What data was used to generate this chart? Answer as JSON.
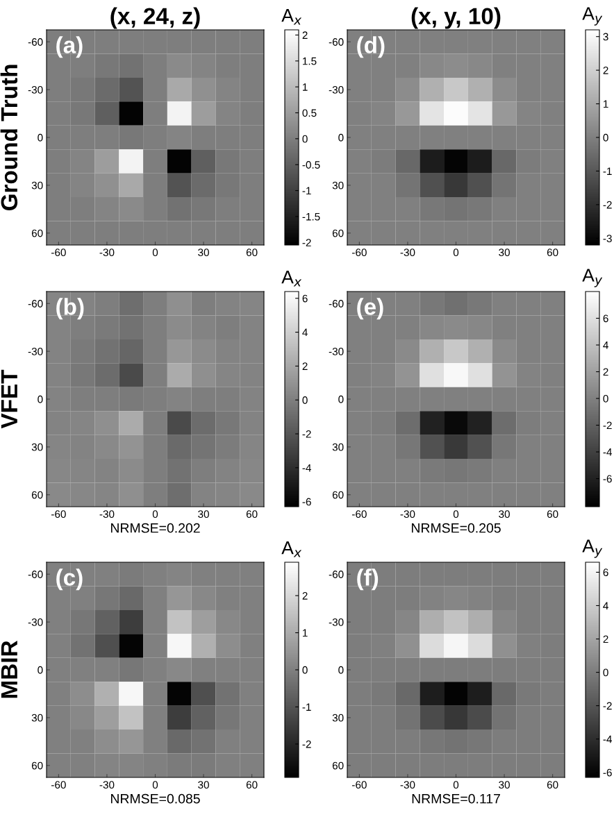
{
  "chart_data": [
    {
      "type": "heatmap",
      "title": "(x, 24, z)",
      "ylabel": "Ground Truth",
      "clabel": "A$_{x}$",
      "annotations": [
        "(a)"
      ],
      "categories": [
        "-60",
        null,
        "-30",
        null,
        "0",
        null,
        "30",
        null,
        "60"
      ],
      "y_categories": [
        "-60",
        null,
        "-30",
        null,
        "0",
        null,
        "30",
        null,
        "60"
      ],
      "clim": [
        -2.05,
        2.1
      ],
      "cticks": [
        -2,
        -1.5,
        -1,
        -0.5,
        0,
        0.5,
        1,
        1.5,
        2
      ],
      "cells": [
        [
          0,
          0,
          0,
          0,
          0,
          0,
          0,
          0,
          0
        ],
        [
          0,
          0,
          -0.1,
          -0.2,
          0,
          0.2,
          0.1,
          0,
          0
        ],
        [
          0,
          -0.1,
          -0.3,
          -0.7,
          0,
          0.7,
          0.3,
          0.1,
          0
        ],
        [
          0,
          -0.1,
          -0.5,
          -2,
          0,
          1.9,
          0.5,
          0.1,
          0
        ],
        [
          0,
          0,
          0,
          -0.1,
          0,
          0.1,
          0,
          0,
          0
        ],
        [
          0,
          0.1,
          0.5,
          1.9,
          0,
          -2,
          -0.5,
          -0.1,
          0
        ],
        [
          0,
          0.1,
          0.3,
          0.7,
          0,
          -0.7,
          -0.3,
          -0.1,
          0
        ],
        [
          0,
          0,
          0.1,
          0.2,
          0,
          -0.2,
          -0.1,
          0,
          0
        ],
        [
          0,
          0,
          0,
          0,
          0,
          0,
          0,
          0,
          0
        ]
      ]
    },
    {
      "type": "heatmap",
      "title": "(x, y, 10)",
      "clabel": "A$_{y}$",
      "annotations": [
        "(d)"
      ],
      "categories": [
        "-60",
        null,
        "-30",
        null,
        "0",
        null,
        "30",
        null,
        "60"
      ],
      "y_categories": [
        "-60",
        null,
        "-30",
        null,
        "0",
        null,
        "30",
        null,
        "60"
      ],
      "clim": [
        -3.2,
        3.2
      ],
      "cticks": [
        -3,
        -2,
        -1,
        0,
        1,
        2,
        3
      ],
      "cells": [
        [
          0,
          0,
          0,
          0,
          0,
          0,
          0,
          0,
          0
        ],
        [
          0,
          0,
          0,
          0.2,
          0.3,
          0.2,
          0,
          0,
          0
        ],
        [
          0,
          0,
          0.3,
          1.2,
          1.8,
          1.2,
          0.3,
          0,
          0
        ],
        [
          0,
          0.1,
          0.6,
          2.5,
          3.1,
          2.5,
          0.6,
          0.1,
          0
        ],
        [
          0,
          0,
          0,
          0,
          0,
          0,
          0,
          0,
          0
        ],
        [
          0,
          -0.1,
          -0.6,
          -2.5,
          -3.1,
          -2.5,
          -0.6,
          -0.1,
          0
        ],
        [
          0,
          0,
          -0.3,
          -1.2,
          -1.8,
          -1.2,
          -0.3,
          0,
          0
        ],
        [
          0,
          0,
          0,
          -0.2,
          -0.3,
          -0.2,
          0,
          0,
          0
        ],
        [
          0,
          0,
          0,
          0,
          0,
          0,
          0,
          0,
          0
        ]
      ]
    },
    {
      "type": "heatmap",
      "ylabel": "VFET",
      "xlabel": "NRMSE=0.202",
      "clabel": "A$_{x}$",
      "annotations": [
        "(b)"
      ],
      "categories": [
        "-60",
        null,
        "-30",
        null,
        "0",
        null,
        "30",
        null,
        "60"
      ],
      "y_categories": [
        "-60",
        null,
        "-30",
        null,
        "0",
        null,
        "30",
        null,
        "60"
      ],
      "clim": [
        -6.3,
        6.4
      ],
      "cticks": [
        -6,
        -4,
        -2,
        0,
        2,
        4,
        6
      ],
      "cells": [
        [
          0.3,
          0.2,
          0,
          -0.8,
          0,
          0.8,
          0,
          0.2,
          0.3
        ],
        [
          0.2,
          0,
          -0.2,
          -0.6,
          0,
          0.6,
          0.2,
          0,
          0.2
        ],
        [
          0.2,
          -0.2,
          -0.6,
          -1.2,
          0,
          1.2,
          0.6,
          0.2,
          0.2
        ],
        [
          0.2,
          -0.3,
          -0.9,
          -2.6,
          0,
          2.2,
          0.8,
          0.3,
          0.2
        ],
        [
          0.2,
          0,
          0,
          -0.2,
          0,
          0.2,
          0,
          0,
          0.2
        ],
        [
          0.2,
          0.3,
          0.8,
          2.2,
          0,
          -2.6,
          -0.9,
          -0.3,
          0.2
        ],
        [
          0.3,
          0.2,
          0.5,
          1.0,
          0,
          -1.0,
          -0.5,
          -0.1,
          0.3
        ],
        [
          0.4,
          0.3,
          0.2,
          0.6,
          0,
          -0.6,
          0,
          0.2,
          0.4
        ],
        [
          0.5,
          0.4,
          0.3,
          0.8,
          0,
          -0.8,
          0.2,
          0.3,
          0.5
        ]
      ]
    },
    {
      "type": "heatmap",
      "xlabel": "NRMSE=0.205",
      "clabel": "A$_{y}$",
      "annotations": [
        "(e)"
      ],
      "categories": [
        "-60",
        null,
        "-30",
        null,
        "0",
        null,
        "30",
        null,
        "60"
      ],
      "y_categories": [
        "-60",
        null,
        "-30",
        null,
        "0",
        null,
        "30",
        null,
        "60"
      ],
      "clim": [
        -8.1,
        8
      ],
      "cticks": [
        -6,
        -4,
        -2,
        0,
        2,
        4,
        6
      ],
      "cells": [
        [
          0,
          0,
          0,
          -0.5,
          -1,
          -0.5,
          0,
          0,
          0
        ],
        [
          0,
          0,
          0,
          0.4,
          0.6,
          0.4,
          0,
          0,
          0
        ],
        [
          0,
          0,
          0.6,
          3,
          4.5,
          3,
          0.6,
          0,
          0
        ],
        [
          0,
          0.2,
          1.2,
          6,
          7.5,
          6,
          1.2,
          0.2,
          0
        ],
        [
          0,
          0,
          0,
          0,
          0,
          0,
          0,
          0,
          0
        ],
        [
          0,
          -0.2,
          -1.2,
          -6,
          -7.5,
          -6,
          -1.2,
          -0.2,
          0
        ],
        [
          0,
          0,
          -0.6,
          -3,
          -4.5,
          -3,
          -0.6,
          0,
          0
        ],
        [
          0,
          0,
          0,
          -0.4,
          -0.6,
          -0.4,
          0,
          0,
          0
        ],
        [
          0,
          0,
          0,
          0,
          0,
          0,
          0,
          0,
          0
        ]
      ]
    },
    {
      "type": "heatmap",
      "ylabel": "MBIR",
      "xlabel": "NRMSE=0.085",
      "clabel": "A$_{x}$",
      "annotations": [
        "(c)"
      ],
      "categories": [
        "-60",
        null,
        "-30",
        null,
        "0",
        null,
        "30",
        null,
        "60"
      ],
      "y_categories": [
        "-60",
        null,
        "-30",
        null,
        "0",
        null,
        "30",
        null,
        "60"
      ],
      "clim": [
        -2.9,
        2.9
      ],
      "cticks": [
        -2,
        -1,
        0,
        1,
        2
      ],
      "cells": [
        [
          0,
          0,
          0,
          -0.1,
          0,
          0.1,
          0,
          0,
          0
        ],
        [
          0,
          0,
          -0.2,
          -0.5,
          0,
          0.5,
          0.2,
          0,
          0
        ],
        [
          0,
          -0.2,
          -0.7,
          -1.5,
          0,
          1.5,
          0.7,
          0.2,
          0
        ],
        [
          0,
          -0.3,
          -1.1,
          -2.8,
          0,
          2.7,
          1.1,
          0.3,
          0
        ],
        [
          0,
          0,
          0,
          -0.2,
          0,
          0.2,
          0,
          0,
          0
        ],
        [
          0,
          0.3,
          1.1,
          2.7,
          0,
          -2.8,
          -1.1,
          -0.3,
          0
        ],
        [
          0,
          0.2,
          0.7,
          1.5,
          0,
          -1.5,
          -0.7,
          -0.2,
          0
        ],
        [
          0,
          0,
          0.3,
          0.5,
          0,
          -0.5,
          -0.3,
          0,
          0
        ],
        [
          0,
          0,
          0.1,
          0.1,
          0,
          -0.1,
          -0.1,
          0,
          0
        ]
      ]
    },
    {
      "type": "heatmap",
      "xlabel": "NRMSE=0.117",
      "clabel": "A$_{y}$",
      "annotations": [
        "(f)"
      ],
      "categories": [
        "-60",
        null,
        "-30",
        null,
        "0",
        null,
        "30",
        null,
        "60"
      ],
      "y_categories": [
        "-60",
        null,
        "-30",
        null,
        "0",
        null,
        "30",
        null,
        "60"
      ],
      "clim": [
        -6.3,
        6.6
      ],
      "cticks": [
        -6,
        -4,
        -2,
        0,
        2,
        4,
        6
      ],
      "cells": [
        [
          0,
          0,
          0,
          0,
          0,
          0,
          0,
          0,
          0
        ],
        [
          0,
          0,
          0,
          0.3,
          0.5,
          0.3,
          0,
          0,
          0
        ],
        [
          0,
          0,
          0.5,
          2.5,
          3.5,
          2.5,
          0.5,
          0,
          0
        ],
        [
          0,
          0.2,
          1,
          4.8,
          6.1,
          4.8,
          1,
          0.2,
          0
        ],
        [
          0,
          0,
          0,
          0,
          0,
          0,
          0,
          0,
          0
        ],
        [
          0,
          -0.2,
          -1,
          -4.8,
          -6.1,
          -4.8,
          -1,
          -0.2,
          0
        ],
        [
          0,
          0,
          -0.5,
          -2.5,
          -3.5,
          -2.5,
          -0.5,
          0,
          0
        ],
        [
          0,
          0,
          0,
          -0.3,
          -0.5,
          -0.3,
          0,
          0,
          0
        ],
        [
          0,
          0,
          0,
          0,
          0,
          0,
          0,
          0,
          0
        ]
      ]
    }
  ]
}
